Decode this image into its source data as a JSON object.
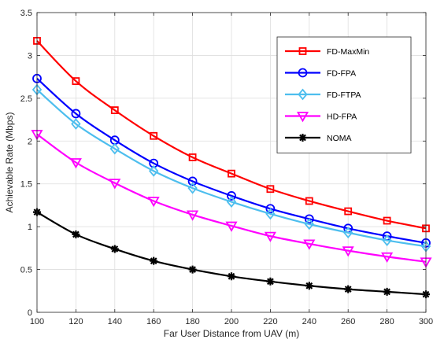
{
  "chart_data": {
    "type": "line",
    "title": "",
    "xlabel": "Far User Distance from UAV (m)",
    "ylabel": "Achievable Rate (Mbps)",
    "xlim": [
      100,
      300
    ],
    "ylim": [
      0,
      3.5
    ],
    "xticks": [
      100,
      120,
      140,
      160,
      180,
      200,
      220,
      240,
      260,
      280,
      300
    ],
    "yticks": [
      0,
      0.5,
      1,
      1.5,
      2,
      2.5,
      3,
      3.5
    ],
    "xtick_labels": [
      "100",
      "120",
      "140",
      "160",
      "180",
      "200",
      "220",
      "240",
      "260",
      "280",
      "300"
    ],
    "ytick_labels": [
      "0",
      "0.5",
      "1",
      "1.5",
      "2",
      "2.5",
      "3",
      "3.5"
    ],
    "grid": true,
    "legend_position": "top-right",
    "x": [
      100,
      120,
      140,
      160,
      180,
      200,
      220,
      240,
      260,
      280,
      300
    ],
    "series": [
      {
        "name": "FD-MaxMin",
        "color": "#ff0000",
        "marker": "square",
        "values": [
          3.17,
          2.7,
          2.36,
          2.06,
          1.81,
          1.62,
          1.44,
          1.3,
          1.18,
          1.07,
          0.98
        ]
      },
      {
        "name": "FD-FPA",
        "color": "#0000ff",
        "marker": "circle",
        "values": [
          2.73,
          2.32,
          2.01,
          1.74,
          1.53,
          1.36,
          1.21,
          1.09,
          0.98,
          0.89,
          0.81
        ]
      },
      {
        "name": "FD-FTPA",
        "color": "#4dbeee",
        "marker": "diamond",
        "values": [
          2.6,
          2.2,
          1.91,
          1.65,
          1.45,
          1.29,
          1.15,
          1.03,
          0.93,
          0.84,
          0.77
        ]
      },
      {
        "name": "HD-FPA",
        "color": "#ff00ff",
        "marker": "triangle-down",
        "values": [
          2.08,
          1.75,
          1.51,
          1.3,
          1.14,
          1.01,
          0.89,
          0.8,
          0.72,
          0.65,
          0.59
        ]
      },
      {
        "name": "NOMA",
        "color": "#000000",
        "marker": "asterisk",
        "values": [
          1.17,
          0.91,
          0.74,
          0.6,
          0.5,
          0.42,
          0.36,
          0.31,
          0.27,
          0.24,
          0.21
        ]
      }
    ]
  }
}
